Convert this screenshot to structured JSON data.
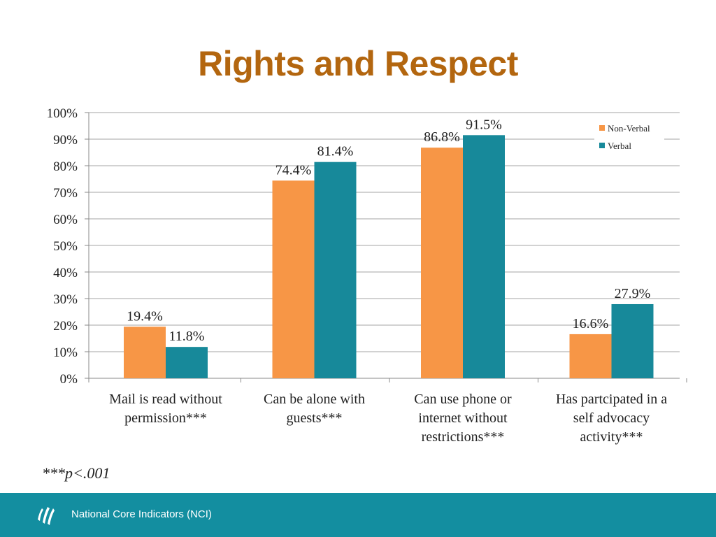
{
  "slide": {
    "title": "Rights and Respect",
    "footnote": "***p<.001",
    "footer_text": "National Core Indicators (NCI)",
    "footer_logo_icon": "nci-logo-icon"
  },
  "colors": {
    "title": "#b3660f",
    "non_verbal": "#f79646",
    "verbal": "#17899a",
    "footer": "#138ea0"
  },
  "chart_data": {
    "type": "bar",
    "title": "Rights and Respect",
    "xlabel": "",
    "ylabel": "",
    "ylim": [
      0,
      100
    ],
    "y_ticks": [
      "0%",
      "10%",
      "20%",
      "30%",
      "40%",
      "50%",
      "60%",
      "70%",
      "80%",
      "90%",
      "100%"
    ],
    "categories": [
      [
        "Mail is read without",
        "permission***"
      ],
      [
        "Can be alone with",
        "guests***"
      ],
      [
        "Can use phone or",
        "internet without",
        "restrictions***"
      ],
      [
        "Has partcipated in a",
        "self advocacy",
        "activity***"
      ]
    ],
    "series": [
      {
        "name": "Non-Verbal",
        "values": [
          19.4,
          74.4,
          86.8,
          16.6
        ],
        "labels": [
          "19.4%",
          "74.4%",
          "86.8%",
          "16.6%"
        ]
      },
      {
        "name": "Verbal",
        "values": [
          11.8,
          81.4,
          91.5,
          27.9
        ],
        "labels": [
          "11.8%",
          "81.4%",
          "91.5%",
          "27.9%"
        ]
      }
    ],
    "legend_position": "top-right",
    "grid": true
  }
}
